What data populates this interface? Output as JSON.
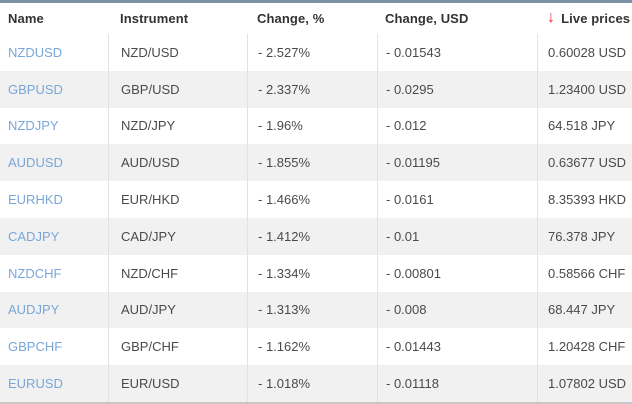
{
  "colors": {
    "top_border": "#7b92a6",
    "link_blue": "#79a6d9",
    "arrow_red": "#ee2a24",
    "row_alt_bg": "#f1f1f1",
    "divider": "#e2e2e2"
  },
  "table": {
    "columns": [
      {
        "label": "Name"
      },
      {
        "label": "Instrument"
      },
      {
        "label": "Change, %"
      },
      {
        "label": "Change, USD"
      },
      {
        "label": "Live prices"
      }
    ],
    "live_prices_arrow_glyph": "↓",
    "rows": [
      {
        "name": "NZDUSD",
        "instrument": "NZD/USD",
        "change_pct": "- 2.527%",
        "change_usd": "- 0.01543",
        "price": "0.60028 USD"
      },
      {
        "name": "GBPUSD",
        "instrument": "GBP/USD",
        "change_pct": "- 2.337%",
        "change_usd": "- 0.0295",
        "price": "1.23400 USD"
      },
      {
        "name": "NZDJPY",
        "instrument": "NZD/JPY",
        "change_pct": "- 1.96%",
        "change_usd": "- 0.012",
        "price": "64.518 JPY"
      },
      {
        "name": "AUDUSD",
        "instrument": "AUD/USD",
        "change_pct": "- 1.855%",
        "change_usd": "- 0.01195",
        "price": "0.63677 USD"
      },
      {
        "name": "EURHKD",
        "instrument": "EUR/HKD",
        "change_pct": "- 1.466%",
        "change_usd": "- 0.0161",
        "price": "8.35393 HKD"
      },
      {
        "name": "CADJPY",
        "instrument": "CAD/JPY",
        "change_pct": "- 1.412%",
        "change_usd": "- 0.01",
        "price": "76.378 JPY"
      },
      {
        "name": "NZDCHF",
        "instrument": "NZD/CHF",
        "change_pct": "- 1.334%",
        "change_usd": "- 0.00801",
        "price": "0.58566 CHF"
      },
      {
        "name": "AUDJPY",
        "instrument": "AUD/JPY",
        "change_pct": "- 1.313%",
        "change_usd": "- 0.008",
        "price": "68.447 JPY"
      },
      {
        "name": "GBPCHF",
        "instrument": "GBP/CHF",
        "change_pct": "- 1.162%",
        "change_usd": "- 0.01443",
        "price": "1.20428 CHF"
      },
      {
        "name": "EURUSD",
        "instrument": "EUR/USD",
        "change_pct": "- 1.018%",
        "change_usd": "- 0.01118",
        "price": "1.07802 USD"
      }
    ]
  }
}
